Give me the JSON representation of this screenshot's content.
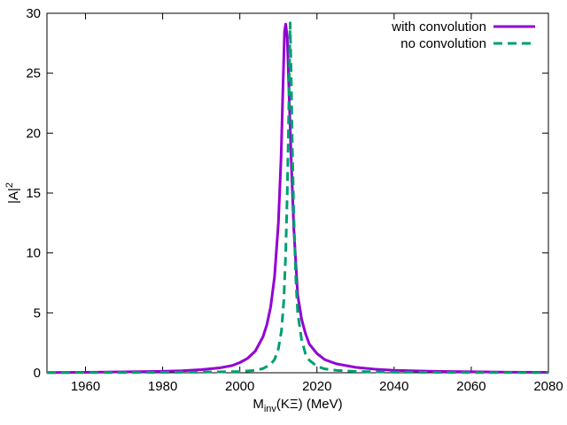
{
  "chart_data": {
    "type": "line",
    "xlabel": {
      "main": "M",
      "sub": "inv",
      "rest": "(KΞ) (MeV)"
    },
    "ylabel": {
      "main": "|A|",
      "sup": "2"
    },
    "xlim": [
      1950,
      2080
    ],
    "ylim": [
      0,
      30
    ],
    "xticks": [
      1960,
      1980,
      2000,
      2020,
      2040,
      2060,
      2080
    ],
    "yticks": [
      0,
      5,
      10,
      15,
      20,
      25,
      30
    ],
    "grid": false,
    "legend_position": "top-right",
    "series": [
      {
        "name": "with convolution",
        "color": "#9400d3",
        "dash": "solid",
        "points": [
          [
            1950,
            0.02
          ],
          [
            1960,
            0.04
          ],
          [
            1970,
            0.07
          ],
          [
            1980,
            0.12
          ],
          [
            1985,
            0.17
          ],
          [
            1990,
            0.26
          ],
          [
            1995,
            0.42
          ],
          [
            1998,
            0.6
          ],
          [
            2000,
            0.85
          ],
          [
            2002,
            1.2
          ],
          [
            2004,
            1.8
          ],
          [
            2006,
            3.0
          ],
          [
            2007,
            4.0
          ],
          [
            2008,
            5.5
          ],
          [
            2009,
            8.0
          ],
          [
            2010,
            12.5
          ],
          [
            2010.7,
            18.0
          ],
          [
            2011.2,
            24.0
          ],
          [
            2011.6,
            28.5
          ],
          [
            2011.9,
            29.1
          ],
          [
            2012.3,
            28.0
          ],
          [
            2012.7,
            24.0
          ],
          [
            2013.3,
            18.0
          ],
          [
            2014,
            12.0
          ],
          [
            2015,
            6.5
          ],
          [
            2016,
            4.5
          ],
          [
            2017,
            3.3
          ],
          [
            2018,
            2.4
          ],
          [
            2020,
            1.6
          ],
          [
            2022,
            1.1
          ],
          [
            2025,
            0.75
          ],
          [
            2030,
            0.45
          ],
          [
            2035,
            0.3
          ],
          [
            2040,
            0.2
          ],
          [
            2050,
            0.12
          ],
          [
            2060,
            0.08
          ],
          [
            2070,
            0.05
          ],
          [
            2080,
            0.04
          ]
        ]
      },
      {
        "name": "no convolution",
        "color": "#009e73",
        "dash": "dashed",
        "points": [
          [
            1950,
            0.01
          ],
          [
            1970,
            0.02
          ],
          [
            1990,
            0.05
          ],
          [
            2000,
            0.1
          ],
          [
            2004,
            0.2
          ],
          [
            2006,
            0.35
          ],
          [
            2008,
            0.7
          ],
          [
            2009,
            1.1
          ],
          [
            2010,
            2.0
          ],
          [
            2010.8,
            3.5
          ],
          [
            2011.4,
            6.0
          ],
          [
            2011.9,
            10.0
          ],
          [
            2012.3,
            15.0
          ],
          [
            2012.6,
            20.0
          ],
          [
            2012.85,
            25.0
          ],
          [
            2013.05,
            29.2
          ],
          [
            2013.3,
            25.0
          ],
          [
            2013.6,
            19.0
          ],
          [
            2014,
            13.0
          ],
          [
            2014.5,
            8.0
          ],
          [
            2015,
            5.0
          ],
          [
            2016,
            2.8
          ],
          [
            2017,
            1.6
          ],
          [
            2018,
            1.05
          ],
          [
            2020,
            0.55
          ],
          [
            2022,
            0.32
          ],
          [
            2025,
            0.2
          ],
          [
            2030,
            0.11
          ],
          [
            2040,
            0.05
          ],
          [
            2060,
            0.02
          ],
          [
            2080,
            0.01
          ]
        ]
      }
    ]
  }
}
